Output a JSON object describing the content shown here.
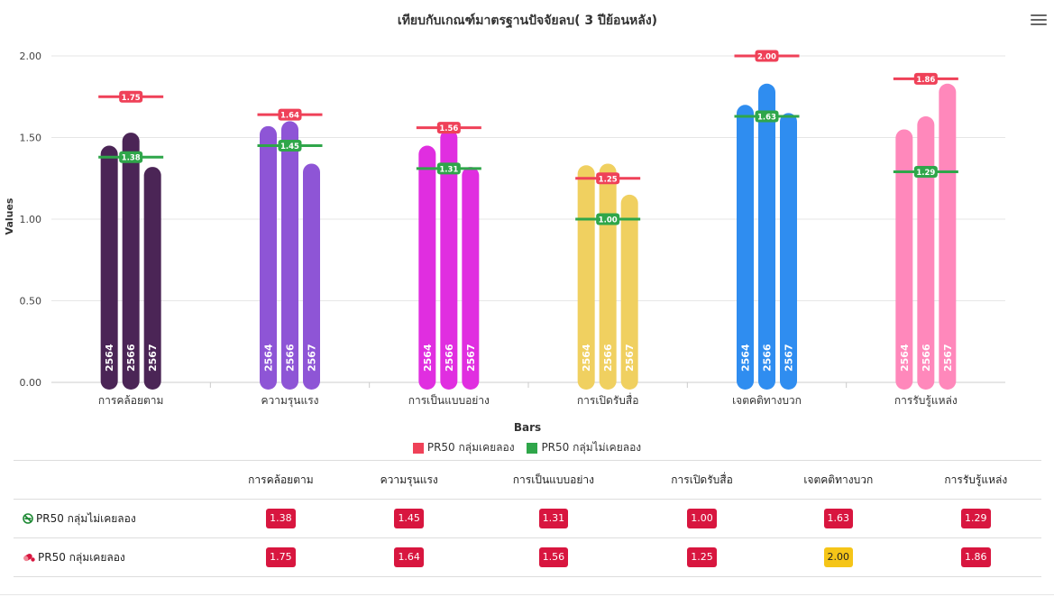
{
  "chart_data": {
    "type": "bar",
    "title": "เทียบกับเกณฑ์มาตรฐานปัจจัยลบ( 3 ปีย้อนหลัง)",
    "xlabel": "Bars",
    "ylabel": "Values",
    "ylim": [
      0,
      2
    ],
    "yticks": [
      "0.00",
      "0.50",
      "1.00",
      "1.50",
      "2.00"
    ],
    "categories": [
      "การคล้อยตาม",
      "ความรุนแรง",
      "การเป็นแบบอย่าง",
      "การเปิดรับสื่อ",
      "เจตคติทางบวก",
      "การรับรู้แหล่ง"
    ],
    "years": [
      "2564",
      "2566",
      "2567"
    ],
    "bar_colors": [
      "#4b2556",
      "#8e55d6",
      "#e02ee0",
      "#f0d060",
      "#2f8df0",
      "#ff88bb"
    ],
    "bar_values": [
      [
        1.45,
        1.53,
        1.32
      ],
      [
        1.57,
        1.6,
        1.34
      ],
      [
        1.45,
        1.55,
        1.32
      ],
      [
        1.33,
        1.34,
        1.15
      ],
      [
        1.7,
        1.83,
        1.65
      ],
      [
        1.55,
        1.63,
        1.83
      ]
    ],
    "grid": true,
    "legend_position": "bottom",
    "series": [
      {
        "name": "PR50 กลุ่มเคยลอง",
        "color": "#ef4158",
        "values": [
          1.75,
          1.64,
          1.56,
          1.25,
          2.0,
          1.86
        ],
        "labels": [
          "1.75",
          "1.64",
          "1.56",
          "1.25",
          "2.00",
          "1.86"
        ]
      },
      {
        "name": "PR50 กลุ่มไม่เคยลอง",
        "color": "#2fa64a",
        "values": [
          1.38,
          1.45,
          1.31,
          1.0,
          1.63,
          1.29
        ],
        "labels": [
          "1.38",
          "1.45",
          "1.31",
          "1.00",
          "1.63",
          "1.29"
        ]
      }
    ]
  },
  "legend": {
    "items": [
      {
        "label": "PR50 กลุ่มเคยลอง",
        "color": "#ef4158"
      },
      {
        "label": "PR50 กลุ่มไม่เคยลอง",
        "color": "#2fa64a"
      }
    ]
  },
  "table": {
    "headers": [
      "",
      "การคล้อยตาม",
      "ความรุนแรง",
      "การเป็นแบบอย่าง",
      "การเปิดรับสื่อ",
      "เจตคติทางบวก",
      "การรับรู้แหล่ง"
    ],
    "rows": [
      {
        "label": "PR50 กลุ่มไม่เคยลอง",
        "icon": "no-smoking-icon",
        "cells": [
          "1.38",
          "1.45",
          "1.31",
          "1.00",
          "1.63",
          "1.29"
        ],
        "colors": [
          "#d8163f",
          "#d8163f",
          "#d8163f",
          "#d8163f",
          "#d8163f",
          "#d8163f"
        ]
      },
      {
        "label": "PR50 กลุ่มเคยลอง",
        "icon": "pill-icon",
        "cells": [
          "1.75",
          "1.64",
          "1.56",
          "1.25",
          "2.00",
          "1.86"
        ],
        "colors": [
          "#d8163f",
          "#d8163f",
          "#d8163f",
          "#d8163f",
          "#f5c518",
          "#d8163f"
        ]
      }
    ]
  }
}
